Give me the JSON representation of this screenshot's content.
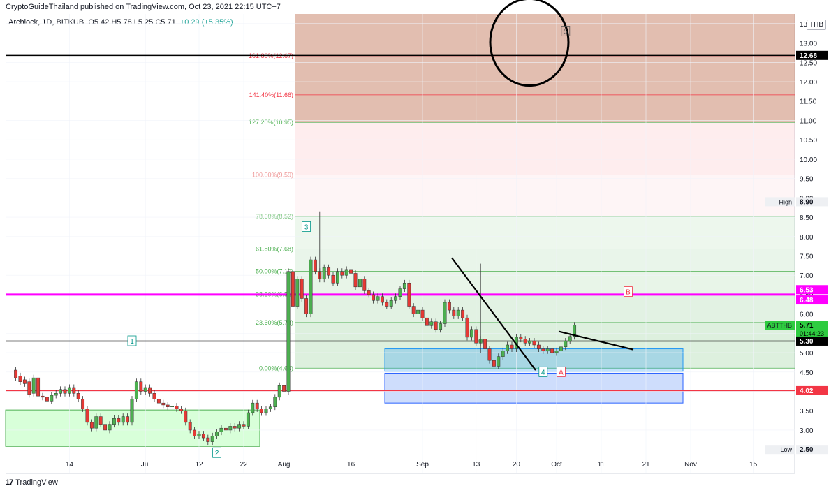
{
  "header": {
    "publisher": "CryptoGuideThailand published on TradingView.com, Oct 23, 2021 22:15 UTC+7",
    "symbol": "Arcblock, 1D, BITKUB",
    "ohlc": "O5.42  H5.78  L5.25  C5.71",
    "change": "+0.29 (+5.35%)",
    "currency": "THB"
  },
  "footer": {
    "brand": "TradingView",
    "brand_icon": "tradingview-logo-icon"
  },
  "colors": {
    "up": "#26a69a",
    "down": "#ef5350",
    "candle_up": "#4caf50",
    "candle_down": "#e53935",
    "magenta": "#ff00ff",
    "red_line": "#f23645",
    "fib_ext": "#c67e6a"
  },
  "chart_data": {
    "type": "candlestick",
    "ylim": [
      2.35,
      13.75
    ],
    "x_ticks": [
      {
        "day": 14,
        "label": "14"
      },
      {
        "day": 31,
        "label": "Jul"
      },
      {
        "day": 43,
        "label": "12"
      },
      {
        "day": 53,
        "label": "22"
      },
      {
        "day": 62,
        "label": "Aug"
      },
      {
        "day": 77,
        "label": "16"
      },
      {
        "day": 93,
        "label": "Sep"
      },
      {
        "day": 105,
        "label": "13"
      },
      {
        "day": 114,
        "label": "20"
      },
      {
        "day": 123,
        "label": "Oct"
      },
      {
        "day": 133,
        "label": "11"
      },
      {
        "day": 143,
        "label": "21"
      },
      {
        "day": 153,
        "label": "Nov"
      },
      {
        "day": 167,
        "label": "15"
      }
    ],
    "y_ticks": [
      "3.00",
      "3.50",
      "4.00",
      "4.50",
      "5.00",
      "5.50",
      "6.00",
      "6.50",
      "7.00",
      "7.50",
      "8.00",
      "8.50",
      "9.00",
      "9.50",
      "10.00",
      "10.50",
      "11.00",
      "11.50",
      "12.00",
      "12.50",
      "13.00",
      "13.50"
    ],
    "price_tags": [
      {
        "value": 12.68,
        "label": "12.68",
        "style": "black"
      },
      {
        "value": 8.9,
        "label": "8.90",
        "prefix": "High",
        "style": "plain"
      },
      {
        "value": 6.53,
        "label": "6.53",
        "style": "magenta"
      },
      {
        "value": 6.48,
        "label": "6.48",
        "style": "magenta"
      },
      {
        "value": 5.71,
        "label": "5.71",
        "prefix": "ABTTHB",
        "sub": "01:44:23",
        "style": "green"
      },
      {
        "value": 5.3,
        "label": "5.30",
        "style": "black"
      },
      {
        "value": 4.02,
        "label": "4.02",
        "style": "red"
      },
      {
        "value": 2.5,
        "label": "2.50",
        "prefix": "Low",
        "style": "plain"
      }
    ],
    "fib_levels": [
      {
        "value": 4.6,
        "label": "0.00%(4.60)",
        "color": "#4caf50"
      },
      {
        "value": 5.78,
        "label": "23.60%(5.78)",
        "color": "#4caf50"
      },
      {
        "value": 6.51,
        "label": "38.20%(6.51)",
        "color": "#4caf50"
      },
      {
        "value": 7.1,
        "label": "50.00%(7.10)",
        "color": "#4caf50"
      },
      {
        "value": 7.68,
        "label": "61.80%(7.68)",
        "color": "#4caf50"
      },
      {
        "value": 8.52,
        "label": "78.60%(8.52)",
        "color": "#81c784"
      },
      {
        "value": 9.59,
        "label": "100.00%(9.59)",
        "color": "#ef9a9a"
      },
      {
        "value": 10.95,
        "label": "127.20%(10.95)",
        "color": "#4caf50"
      },
      {
        "value": 11.66,
        "label": "141.40%(11.66)",
        "color": "#f23645"
      },
      {
        "value": 12.67,
        "label": "161.80%(12.67)",
        "color": "#f23645"
      }
    ],
    "horizontal_lines": [
      {
        "value": 12.68,
        "color": "#000000"
      },
      {
        "value": 6.5,
        "color": "#ff00ff"
      },
      {
        "value": 5.3,
        "color": "#000000"
      },
      {
        "value": 4.02,
        "color": "#f23645"
      }
    ],
    "wave_labels": [
      {
        "label": "1",
        "day": 28,
        "value": 5.29,
        "color": "#009688"
      },
      {
        "label": "2",
        "day": 47,
        "value": 2.4,
        "color": "#009688"
      },
      {
        "label": "3",
        "day": 67,
        "value": 8.24,
        "color": "#009688"
      },
      {
        "label": "4",
        "day": 120,
        "value": 4.49,
        "color": "#009688"
      },
      {
        "label": "A",
        "day": 124,
        "value": 4.49,
        "color": "#f23645"
      },
      {
        "label": "B",
        "day": 139,
        "value": 6.56,
        "color": "#f23645"
      },
      {
        "label": "5",
        "day": 125,
        "value": 13.29,
        "color": "#555555"
      }
    ],
    "candles": [
      [
        2,
        4.55,
        4.35
      ],
      [
        3,
        4.4,
        4.25
      ],
      [
        4,
        4.3,
        4.2
      ],
      [
        5,
        4.25,
        3.92
      ],
      [
        6,
        3.95,
        4.35
      ],
      [
        7,
        4.35,
        3.88
      ],
      [
        8,
        3.88,
        3.85
      ],
      [
        9,
        3.85,
        3.75
      ],
      [
        10,
        3.75,
        3.9
      ],
      [
        11,
        3.9,
        3.95
      ],
      [
        12,
        3.95,
        4.05
      ],
      [
        13,
        4.05,
        3.95
      ],
      [
        14,
        3.95,
        4.1
      ],
      [
        15,
        4.1,
        3.95
      ],
      [
        16,
        3.95,
        3.8
      ],
      [
        17,
        3.8,
        3.55
      ],
      [
        18,
        3.55,
        3.2
      ],
      [
        19,
        3.2,
        3.05
      ],
      [
        20,
        3.05,
        3.35
      ],
      [
        21,
        3.35,
        3.15
      ],
      [
        22,
        3.15,
        3.0
      ],
      [
        23,
        3.0,
        3.15
      ],
      [
        24,
        3.15,
        3.3
      ],
      [
        25,
        3.3,
        3.2
      ],
      [
        26,
        3.2,
        3.35
      ],
      [
        27,
        3.35,
        3.2
      ],
      [
        28,
        3.2,
        3.8
      ],
      [
        29,
        3.8,
        4.25
      ],
      [
        30,
        4.25,
        4.0
      ],
      [
        31,
        4.0,
        4.1
      ],
      [
        32,
        4.1,
        3.95
      ],
      [
        33,
        3.95,
        3.8
      ],
      [
        34,
        3.8,
        3.7
      ],
      [
        35,
        3.7,
        3.65
      ],
      [
        36,
        3.65,
        3.6
      ],
      [
        37,
        3.6,
        3.62
      ],
      [
        38,
        3.62,
        3.55
      ],
      [
        39,
        3.55,
        3.5
      ],
      [
        40,
        3.5,
        3.2
      ],
      [
        41,
        3.2,
        3.0
      ],
      [
        42,
        3.0,
        2.85
      ],
      [
        43,
        2.85,
        2.9
      ],
      [
        44,
        2.9,
        2.8
      ],
      [
        45,
        2.8,
        2.7
      ],
      [
        46,
        2.7,
        2.85
      ],
      [
        47,
        2.85,
        2.95
      ],
      [
        48,
        2.95,
        3.05
      ],
      [
        49,
        3.05,
        3.0
      ],
      [
        50,
        3.0,
        3.1
      ],
      [
        51,
        3.1,
        3.05
      ],
      [
        52,
        3.05,
        3.15
      ],
      [
        53,
        3.15,
        3.1
      ],
      [
        54,
        3.1,
        3.45
      ],
      [
        55,
        3.45,
        3.7
      ],
      [
        56,
        3.7,
        3.55
      ],
      [
        57,
        3.55,
        3.45
      ],
      [
        58,
        3.45,
        3.55
      ],
      [
        59,
        3.55,
        3.6
      ],
      [
        60,
        3.6,
        3.85
      ],
      [
        61,
        3.85,
        4.15
      ],
      [
        62,
        4.15,
        4.0
      ],
      [
        63,
        4.0,
        7.1
      ],
      [
        64,
        7.1,
        6.2
      ],
      [
        65,
        6.2,
        6.9
      ],
      [
        66,
        6.9,
        6.4
      ],
      [
        67,
        6.4,
        6.0
      ],
      [
        68,
        6.0,
        7.4
      ],
      [
        69,
        7.4,
        7.1
      ],
      [
        70,
        7.1,
        6.9
      ],
      [
        71,
        6.9,
        7.2
      ],
      [
        72,
        7.2,
        7.0
      ],
      [
        73,
        7.0,
        6.8
      ],
      [
        74,
        6.8,
        7.1
      ],
      [
        75,
        7.1,
        7.0
      ],
      [
        76,
        7.0,
        7.15
      ],
      [
        77,
        7.15,
        7.05
      ],
      [
        78,
        7.05,
        6.7
      ],
      [
        79,
        6.7,
        6.9
      ],
      [
        80,
        6.9,
        6.6
      ],
      [
        81,
        6.6,
        6.5
      ],
      [
        82,
        6.5,
        6.35
      ],
      [
        83,
        6.35,
        6.45
      ],
      [
        84,
        6.45,
        6.3
      ],
      [
        85,
        6.3,
        6.2
      ],
      [
        86,
        6.2,
        6.35
      ],
      [
        87,
        6.35,
        6.45
      ],
      [
        88,
        6.45,
        6.65
      ],
      [
        89,
        6.65,
        6.8
      ],
      [
        90,
        6.8,
        6.2
      ],
      [
        91,
        6.2,
        6.0
      ],
      [
        92,
        6.0,
        6.1
      ],
      [
        93,
        6.1,
        5.9
      ],
      [
        94,
        5.9,
        5.7
      ],
      [
        95,
        5.7,
        5.8
      ],
      [
        96,
        5.8,
        5.6
      ],
      [
        97,
        5.6,
        5.75
      ],
      [
        98,
        5.75,
        6.3
      ],
      [
        99,
        6.3,
        6.1
      ],
      [
        100,
        6.1,
        5.95
      ],
      [
        101,
        5.95,
        6.1
      ],
      [
        102,
        6.1,
        5.9
      ],
      [
        103,
        5.9,
        5.4
      ],
      [
        104,
        5.4,
        5.6
      ],
      [
        105,
        5.6,
        5.25
      ],
      [
        106,
        5.25,
        5.35
      ],
      [
        107,
        5.35,
        5.1
      ],
      [
        108,
        5.1,
        4.8
      ],
      [
        109,
        4.8,
        4.65
      ],
      [
        110,
        4.65,
        4.9
      ],
      [
        111,
        4.9,
        5.05
      ],
      [
        112,
        5.05,
        5.2
      ],
      [
        113,
        5.2,
        5.1
      ],
      [
        114,
        5.1,
        5.4
      ],
      [
        115,
        5.4,
        5.35
      ],
      [
        116,
        5.35,
        5.25
      ],
      [
        117,
        5.25,
        5.3
      ],
      [
        118,
        5.3,
        5.2
      ],
      [
        119,
        5.2,
        5.1
      ],
      [
        120,
        5.1,
        5.05
      ],
      [
        121,
        5.05,
        5.1
      ],
      [
        122,
        5.1,
        5.0
      ],
      [
        123,
        5.0,
        5.05
      ],
      [
        124,
        5.05,
        5.15
      ],
      [
        125,
        5.15,
        5.3
      ],
      [
        126,
        5.3,
        5.42
      ],
      [
        127,
        5.42,
        5.71
      ]
    ]
  }
}
